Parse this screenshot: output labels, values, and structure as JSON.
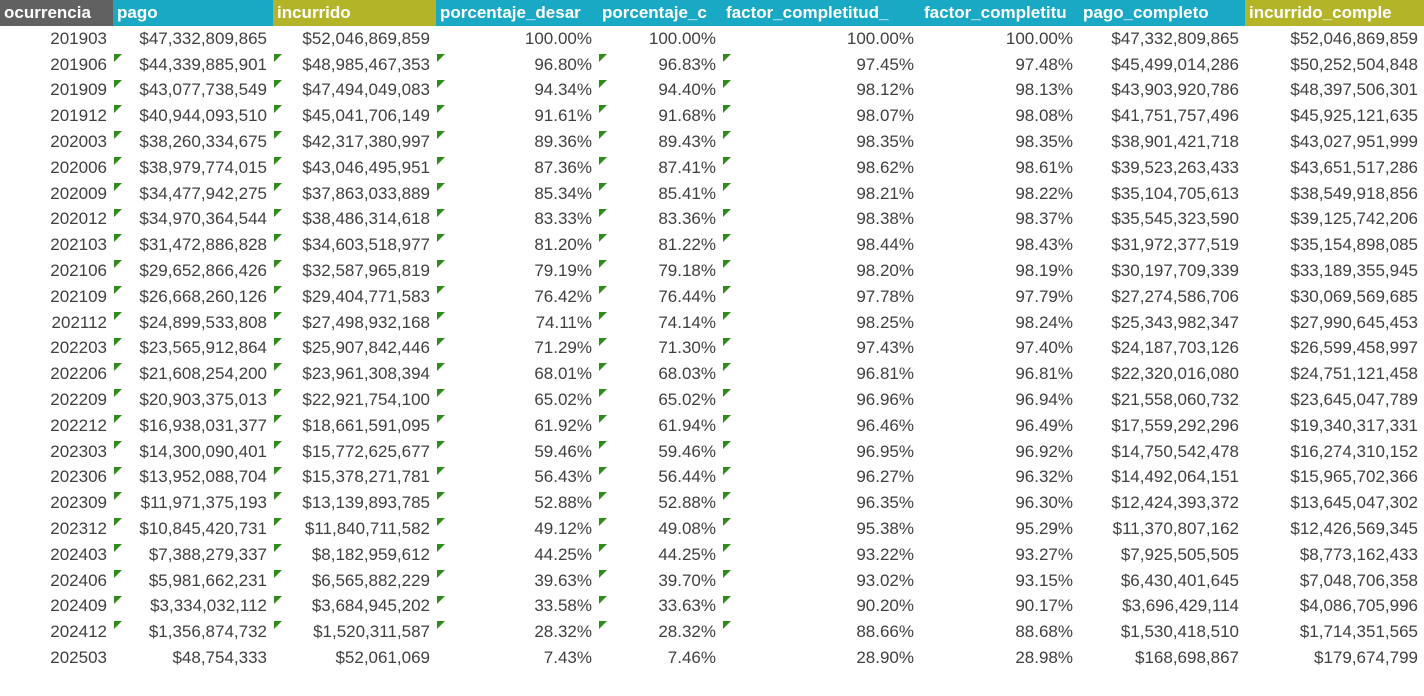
{
  "header_colors": [
    "#616161",
    "#1aa9c4",
    "#b3b427",
    "#1aa9c4",
    "#1aa9c4",
    "#1aa9c4",
    "#1aa9c4",
    "#1aa9c4",
    "#b3b427"
  ],
  "columns": [
    "ocurrencia",
    "pago",
    "incurrido",
    "porcentaje_desar",
    "porcentaje_c",
    "factor_completitud_",
    "factor_completitu",
    "pago_completo",
    "incurrido_comple"
  ],
  "rows": [
    [
      "201903",
      "$47,332,809,865",
      "$52,046,869,859",
      "100.00%",
      "100.00%",
      "100.00%",
      "100.00%",
      "$47,332,809,865",
      "$52,046,869,859"
    ],
    [
      "201906",
      "$44,339,885,901",
      "$48,985,467,353",
      "96.80%",
      "96.83%",
      "97.45%",
      "97.48%",
      "$45,499,014,286",
      "$50,252,504,848"
    ],
    [
      "201909",
      "$43,077,738,549",
      "$47,494,049,083",
      "94.34%",
      "94.40%",
      "98.12%",
      "98.13%",
      "$43,903,920,786",
      "$48,397,506,301"
    ],
    [
      "201912",
      "$40,944,093,510",
      "$45,041,706,149",
      "91.61%",
      "91.68%",
      "98.07%",
      "98.08%",
      "$41,751,757,496",
      "$45,925,121,635"
    ],
    [
      "202003",
      "$38,260,334,675",
      "$42,317,380,997",
      "89.36%",
      "89.43%",
      "98.35%",
      "98.35%",
      "$38,901,421,718",
      "$43,027,951,999"
    ],
    [
      "202006",
      "$38,979,774,015",
      "$43,046,495,951",
      "87.36%",
      "87.41%",
      "98.62%",
      "98.61%",
      "$39,523,263,433",
      "$43,651,517,286"
    ],
    [
      "202009",
      "$34,477,942,275",
      "$37,863,033,889",
      "85.34%",
      "85.41%",
      "98.21%",
      "98.22%",
      "$35,104,705,613",
      "$38,549,918,856"
    ],
    [
      "202012",
      "$34,970,364,544",
      "$38,486,314,618",
      "83.33%",
      "83.36%",
      "98.38%",
      "98.37%",
      "$35,545,323,590",
      "$39,125,742,206"
    ],
    [
      "202103",
      "$31,472,886,828",
      "$34,603,518,977",
      "81.20%",
      "81.22%",
      "98.44%",
      "98.43%",
      "$31,972,377,519",
      "$35,154,898,085"
    ],
    [
      "202106",
      "$29,652,866,426",
      "$32,587,965,819",
      "79.19%",
      "79.18%",
      "98.20%",
      "98.19%",
      "$30,197,709,339",
      "$33,189,355,945"
    ],
    [
      "202109",
      "$26,668,260,126",
      "$29,404,771,583",
      "76.42%",
      "76.44%",
      "97.78%",
      "97.79%",
      "$27,274,586,706",
      "$30,069,569,685"
    ],
    [
      "202112",
      "$24,899,533,808",
      "$27,498,932,168",
      "74.11%",
      "74.14%",
      "98.25%",
      "98.24%",
      "$25,343,982,347",
      "$27,990,645,453"
    ],
    [
      "202203",
      "$23,565,912,864",
      "$25,907,842,446",
      "71.29%",
      "71.30%",
      "97.43%",
      "97.40%",
      "$24,187,703,126",
      "$26,599,458,997"
    ],
    [
      "202206",
      "$21,608,254,200",
      "$23,961,308,394",
      "68.01%",
      "68.03%",
      "96.81%",
      "96.81%",
      "$22,320,016,080",
      "$24,751,121,458"
    ],
    [
      "202209",
      "$20,903,375,013",
      "$22,921,754,100",
      "65.02%",
      "65.02%",
      "96.96%",
      "96.94%",
      "$21,558,060,732",
      "$23,645,047,789"
    ],
    [
      "202212",
      "$16,938,031,377",
      "$18,661,591,095",
      "61.92%",
      "61.94%",
      "96.46%",
      "96.49%",
      "$17,559,292,296",
      "$19,340,317,331"
    ],
    [
      "202303",
      "$14,300,090,401",
      "$15,772,625,677",
      "59.46%",
      "59.46%",
      "96.95%",
      "96.92%",
      "$14,750,542,478",
      "$16,274,310,152"
    ],
    [
      "202306",
      "$13,952,088,704",
      "$15,378,271,781",
      "56.43%",
      "56.44%",
      "96.27%",
      "96.32%",
      "$14,492,064,151",
      "$15,965,702,366"
    ],
    [
      "202309",
      "$11,971,375,193",
      "$13,139,893,785",
      "52.88%",
      "52.88%",
      "96.35%",
      "96.30%",
      "$12,424,393,372",
      "$13,645,047,302"
    ],
    [
      "202312",
      "$10,845,420,731",
      "$11,840,711,582",
      "49.12%",
      "49.08%",
      "95.38%",
      "95.29%",
      "$11,370,807,162",
      "$12,426,569,345"
    ],
    [
      "202403",
      "$7,388,279,337",
      "$8,182,959,612",
      "44.25%",
      "44.25%",
      "93.22%",
      "93.27%",
      "$7,925,505,505",
      "$8,773,162,433"
    ],
    [
      "202406",
      "$5,981,662,231",
      "$6,565,882,229",
      "39.63%",
      "39.70%",
      "93.02%",
      "93.15%",
      "$6,430,401,645",
      "$7,048,706,358"
    ],
    [
      "202409",
      "$3,334,032,112",
      "$3,684,945,202",
      "33.58%",
      "33.63%",
      "90.20%",
      "90.17%",
      "$3,696,429,114",
      "$4,086,705,996"
    ],
    [
      "202412",
      "$1,356,874,732",
      "$1,520,311,587",
      "28.32%",
      "28.32%",
      "88.66%",
      "88.68%",
      "$1,530,418,510",
      "$1,714,351,565"
    ],
    [
      "202503",
      "$48,754,333",
      "$52,061,069",
      "7.43%",
      "7.46%",
      "28.90%",
      "28.98%",
      "$168,698,867",
      "$179,674,799"
    ]
  ],
  "flagged_rows_first_to_last": [
    1,
    23
  ],
  "flagged_columns": [
    1,
    2,
    3,
    4,
    5
  ],
  "flag_icon": "green-triangle-icon"
}
